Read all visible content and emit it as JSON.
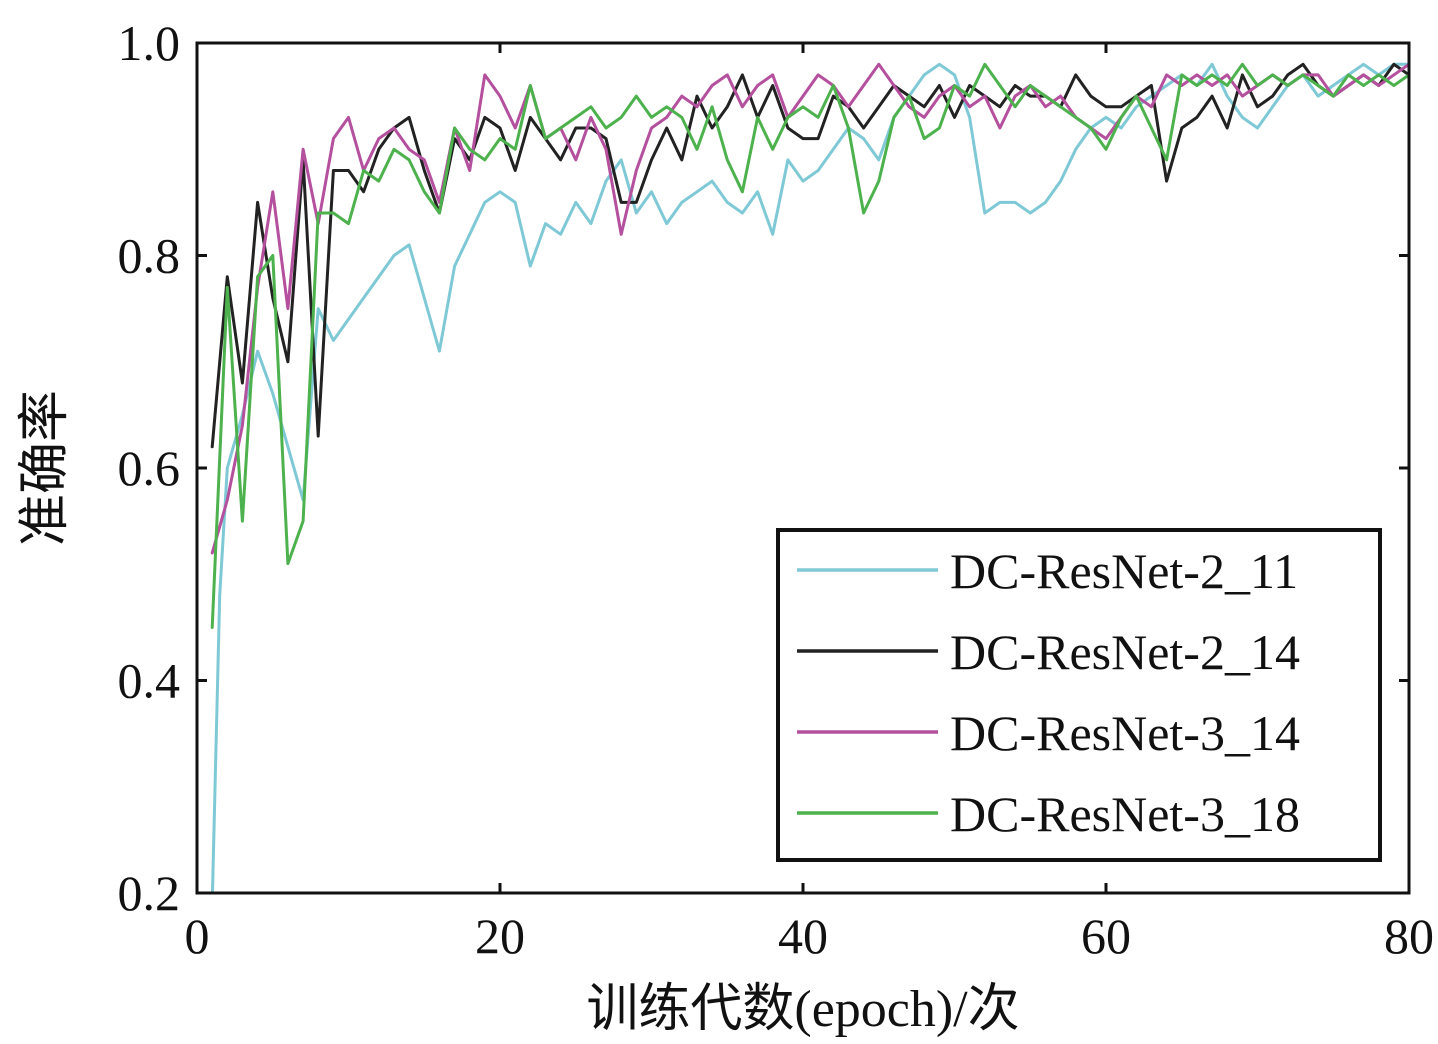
{
  "chart_data": {
    "type": "line",
    "xlabel": "训练代数(epoch)/次",
    "ylabel": "准确率",
    "xlim": [
      0,
      80
    ],
    "ylim": [
      0.2,
      1.0
    ],
    "xticks": [
      0,
      20,
      40,
      60,
      80
    ],
    "xtick_labels": [
      "0",
      "20",
      "40",
      "60",
      "80"
    ],
    "yticks": [
      0.2,
      0.4,
      0.6,
      0.8,
      1.0
    ],
    "ytick_labels": [
      "0.2",
      "0.4",
      "0.6",
      "0.8",
      "1.0"
    ],
    "grid": false,
    "legend_position": "bottom-right",
    "series": [
      {
        "name": "DC-ResNet-2_11",
        "color": "#7fc9d6",
        "x": [
          1,
          1.5,
          2,
          3,
          4,
          5,
          6,
          7,
          8,
          9,
          10,
          11,
          12,
          13,
          14,
          15,
          16,
          17,
          18,
          19,
          20,
          21,
          22,
          23,
          24,
          25,
          26,
          27,
          28,
          29,
          30,
          31,
          32,
          33,
          34,
          35,
          36,
          37,
          38,
          39,
          40,
          41,
          42,
          43,
          44,
          45,
          46,
          47,
          48,
          49,
          50,
          51,
          52,
          53,
          54,
          55,
          56,
          57,
          58,
          59,
          60,
          61,
          62,
          63,
          64,
          65,
          66,
          67,
          68,
          69,
          70,
          71,
          72,
          73,
          74,
          75,
          76,
          77,
          78,
          79,
          80
        ],
        "values": [
          0.19,
          0.48,
          0.6,
          0.65,
          0.71,
          0.67,
          0.62,
          0.57,
          0.75,
          0.72,
          0.74,
          0.76,
          0.78,
          0.8,
          0.81,
          0.76,
          0.71,
          0.79,
          0.82,
          0.85,
          0.86,
          0.85,
          0.79,
          0.83,
          0.82,
          0.85,
          0.83,
          0.87,
          0.89,
          0.84,
          0.86,
          0.83,
          0.85,
          0.86,
          0.87,
          0.85,
          0.84,
          0.86,
          0.82,
          0.89,
          0.87,
          0.88,
          0.9,
          0.92,
          0.91,
          0.89,
          0.93,
          0.95,
          0.97,
          0.98,
          0.97,
          0.93,
          0.84,
          0.85,
          0.85,
          0.84,
          0.85,
          0.87,
          0.9,
          0.92,
          0.93,
          0.92,
          0.94,
          0.95,
          0.96,
          0.97,
          0.96,
          0.98,
          0.95,
          0.93,
          0.92,
          0.94,
          0.96,
          0.97,
          0.95,
          0.96,
          0.97,
          0.98,
          0.97,
          0.98,
          0.98
        ]
      },
      {
        "name": "DC-ResNet-2_14",
        "color": "#222222",
        "x": [
          1,
          2,
          3,
          4,
          5,
          6,
          7,
          8,
          9,
          10,
          11,
          12,
          13,
          14,
          15,
          16,
          17,
          18,
          19,
          20,
          21,
          22,
          23,
          24,
          25,
          26,
          27,
          28,
          29,
          30,
          31,
          32,
          33,
          34,
          35,
          36,
          37,
          38,
          39,
          40,
          41,
          42,
          43,
          44,
          45,
          46,
          47,
          48,
          49,
          50,
          51,
          52,
          53,
          54,
          55,
          56,
          57,
          58,
          59,
          60,
          61,
          62,
          63,
          64,
          65,
          66,
          67,
          68,
          69,
          70,
          71,
          72,
          73,
          74,
          75,
          76,
          77,
          78,
          79,
          80
        ],
        "values": [
          0.62,
          0.78,
          0.68,
          0.85,
          0.76,
          0.7,
          0.89,
          0.63,
          0.88,
          0.88,
          0.86,
          0.9,
          0.92,
          0.93,
          0.88,
          0.84,
          0.91,
          0.89,
          0.93,
          0.92,
          0.88,
          0.93,
          0.91,
          0.89,
          0.92,
          0.92,
          0.91,
          0.85,
          0.85,
          0.89,
          0.92,
          0.89,
          0.95,
          0.92,
          0.94,
          0.97,
          0.93,
          0.96,
          0.92,
          0.91,
          0.91,
          0.95,
          0.94,
          0.92,
          0.94,
          0.96,
          0.95,
          0.94,
          0.96,
          0.93,
          0.96,
          0.95,
          0.94,
          0.96,
          0.95,
          0.95,
          0.94,
          0.97,
          0.95,
          0.94,
          0.94,
          0.95,
          0.96,
          0.87,
          0.92,
          0.93,
          0.95,
          0.92,
          0.97,
          0.94,
          0.95,
          0.97,
          0.98,
          0.96,
          0.95,
          0.96,
          0.97,
          0.96,
          0.98,
          0.97
        ]
      },
      {
        "name": "DC-ResNet-3_14",
        "color": "#b4509e",
        "x": [
          1,
          2,
          3,
          4,
          5,
          6,
          7,
          8,
          9,
          10,
          11,
          12,
          13,
          14,
          15,
          16,
          17,
          18,
          19,
          20,
          21,
          22,
          23,
          24,
          25,
          26,
          27,
          28,
          29,
          30,
          31,
          32,
          33,
          34,
          35,
          36,
          37,
          38,
          39,
          40,
          41,
          42,
          43,
          44,
          45,
          46,
          47,
          48,
          49,
          50,
          51,
          52,
          53,
          54,
          55,
          56,
          57,
          58,
          59,
          60,
          61,
          62,
          63,
          64,
          65,
          66,
          67,
          68,
          69,
          70,
          71,
          72,
          73,
          74,
          75,
          76,
          77,
          78,
          79,
          80
        ],
        "values": [
          0.52,
          0.57,
          0.64,
          0.77,
          0.86,
          0.75,
          0.9,
          0.83,
          0.91,
          0.93,
          0.88,
          0.91,
          0.92,
          0.9,
          0.89,
          0.85,
          0.92,
          0.88,
          0.97,
          0.95,
          0.92,
          0.96,
          0.91,
          0.92,
          0.89,
          0.93,
          0.9,
          0.82,
          0.88,
          0.92,
          0.93,
          0.95,
          0.94,
          0.96,
          0.97,
          0.94,
          0.96,
          0.97,
          0.93,
          0.95,
          0.97,
          0.96,
          0.94,
          0.96,
          0.98,
          0.96,
          0.94,
          0.93,
          0.95,
          0.96,
          0.94,
          0.95,
          0.92,
          0.95,
          0.96,
          0.94,
          0.95,
          0.93,
          0.92,
          0.91,
          0.93,
          0.95,
          0.94,
          0.97,
          0.96,
          0.97,
          0.96,
          0.97,
          0.95,
          0.96,
          0.97,
          0.96,
          0.97,
          0.97,
          0.95,
          0.96,
          0.97,
          0.96,
          0.97,
          0.98
        ]
      },
      {
        "name": "DC-ResNet-3_18",
        "color": "#4db24d",
        "x": [
          1,
          2,
          3,
          4,
          5,
          6,
          7,
          8,
          9,
          10,
          11,
          12,
          13,
          14,
          15,
          16,
          17,
          18,
          19,
          20,
          21,
          22,
          23,
          24,
          25,
          26,
          27,
          28,
          29,
          30,
          31,
          32,
          33,
          34,
          35,
          36,
          37,
          38,
          39,
          40,
          41,
          42,
          43,
          44,
          45,
          46,
          47,
          48,
          49,
          50,
          51,
          52,
          53,
          54,
          55,
          56,
          57,
          58,
          59,
          60,
          61,
          62,
          63,
          64,
          65,
          66,
          67,
          68,
          69,
          70,
          71,
          72,
          73,
          74,
          75,
          76,
          77,
          78,
          79,
          80
        ],
        "values": [
          0.45,
          0.77,
          0.55,
          0.78,
          0.8,
          0.51,
          0.55,
          0.84,
          0.84,
          0.83,
          0.88,
          0.87,
          0.9,
          0.89,
          0.86,
          0.84,
          0.92,
          0.9,
          0.89,
          0.91,
          0.9,
          0.96,
          0.91,
          0.92,
          0.93,
          0.94,
          0.92,
          0.93,
          0.95,
          0.93,
          0.94,
          0.93,
          0.9,
          0.94,
          0.89,
          0.86,
          0.93,
          0.9,
          0.93,
          0.94,
          0.93,
          0.96,
          0.92,
          0.84,
          0.87,
          0.93,
          0.95,
          0.91,
          0.92,
          0.96,
          0.95,
          0.98,
          0.96,
          0.94,
          0.96,
          0.95,
          0.94,
          0.93,
          0.92,
          0.9,
          0.93,
          0.95,
          0.92,
          0.89,
          0.97,
          0.96,
          0.97,
          0.96,
          0.98,
          0.96,
          0.97,
          0.96,
          0.97,
          0.96,
          0.95,
          0.97,
          0.96,
          0.97,
          0.96,
          0.97
        ]
      }
    ]
  }
}
